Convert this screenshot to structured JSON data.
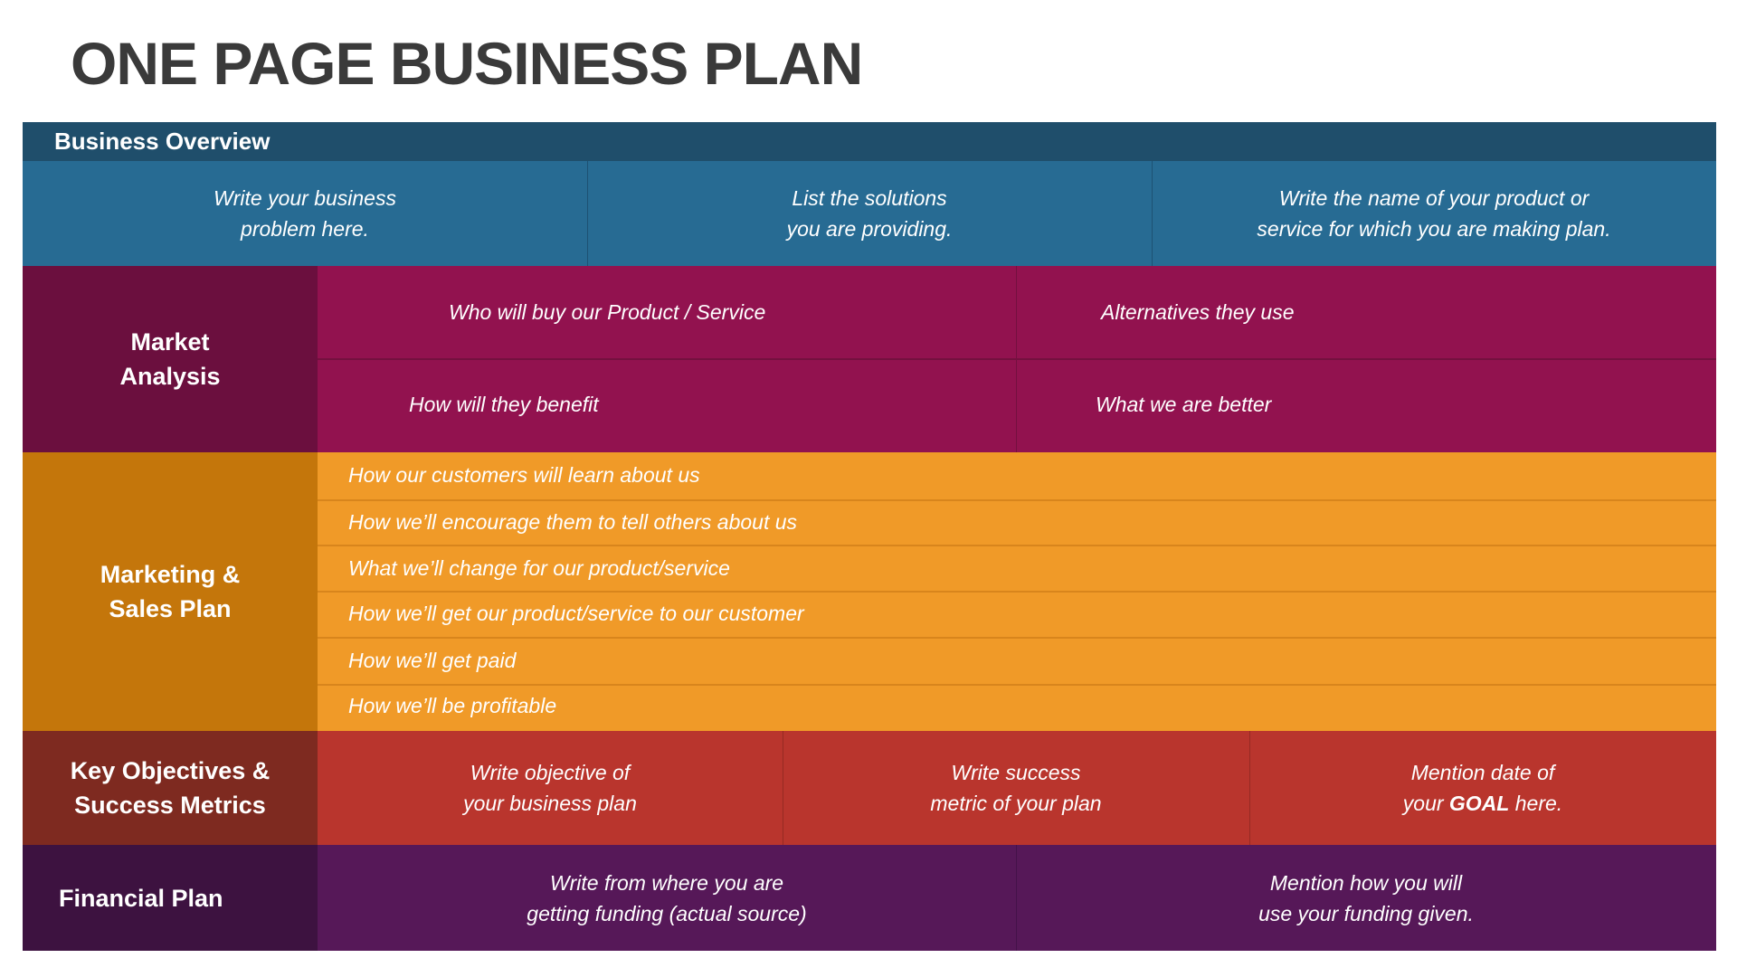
{
  "title": "ONE PAGE BUSINESS PLAN",
  "colors": {
    "overview_header": "#1f4e6b",
    "overview_body": "#276b93",
    "market_label": "#6b0f3e",
    "market_body": "#92124f",
    "marketing_label": "#c4760b",
    "marketing_body": "#f09a28",
    "objectives_label": "#7e2a20",
    "objectives_body": "#b9352d",
    "financial_label": "#3d1240",
    "financial_body": "#561858"
  },
  "business_overview": {
    "header": "Business Overview",
    "cells": [
      [
        "Write your business",
        "problem here."
      ],
      [
        "List the solutions",
        "you are providing."
      ],
      [
        "Write the name of your product or",
        "service for which you are making plan."
      ]
    ]
  },
  "market_analysis": {
    "label": [
      "Market",
      "Analysis"
    ],
    "cells": [
      "Who will buy our Product / Service",
      "Alternatives they use",
      "How will they benefit",
      "What we are better"
    ]
  },
  "marketing_sales": {
    "label": [
      "Marketing &",
      "Sales Plan"
    ],
    "items": [
      "How our customers will learn about us",
      "How we’ll encourage them to tell others about us",
      "What we’ll  change for our product/service",
      "How we’ll get our product/service to our customer",
      "How we’ll get paid",
      "How we’ll be profitable"
    ]
  },
  "key_objectives": {
    "label": [
      "Key Objectives &",
      "Success Metrics"
    ],
    "cells": [
      [
        "Write objective of",
        "your business plan"
      ],
      [
        "Write success",
        "metric of your plan"
      ]
    ],
    "goal_cell": {
      "line1": "Mention date of",
      "pre": "your ",
      "bold": "GOAL",
      "post": " here."
    }
  },
  "financial_plan": {
    "label": "Financial Plan",
    "cells": [
      [
        "Write from where you are",
        "getting funding (actual source)"
      ],
      [
        "Mention how you will",
        "use your funding given."
      ]
    ]
  }
}
